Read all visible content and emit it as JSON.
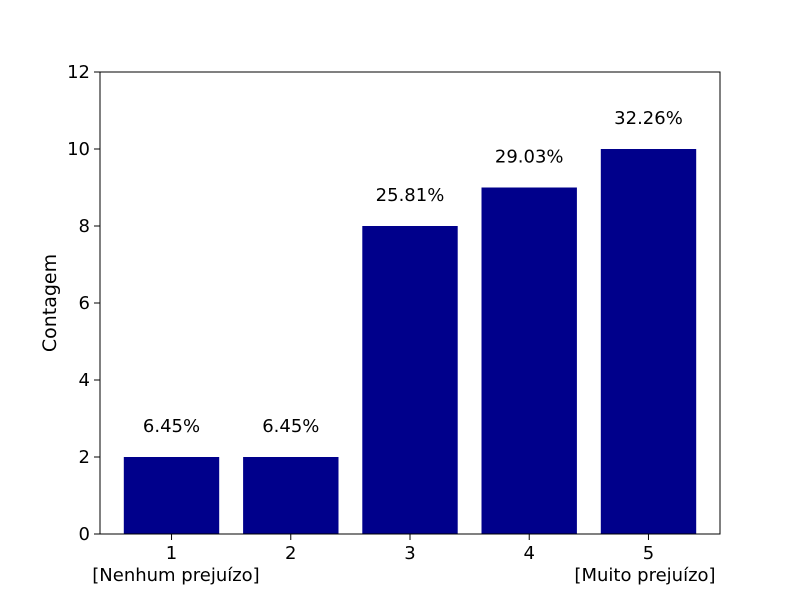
{
  "chart_data": {
    "type": "bar",
    "categories": [
      "1",
      "2",
      "3",
      "4",
      "5"
    ],
    "values": [
      2,
      2,
      8,
      9,
      10
    ],
    "bar_labels": [
      "6.45%",
      "6.45%",
      "25.81%",
      "29.03%",
      "32.26%"
    ],
    "ylabel": "Contagem",
    "ylim": [
      0,
      12
    ],
    "yticks": [
      "0",
      "2",
      "4",
      "6",
      "8",
      "10",
      "12"
    ],
    "x_end_labels": {
      "left": "[Nenhum prejuízo]",
      "right": "[Muito prejuízo]"
    },
    "bar_color": "#00008b",
    "grid": false,
    "legend": "none"
  }
}
